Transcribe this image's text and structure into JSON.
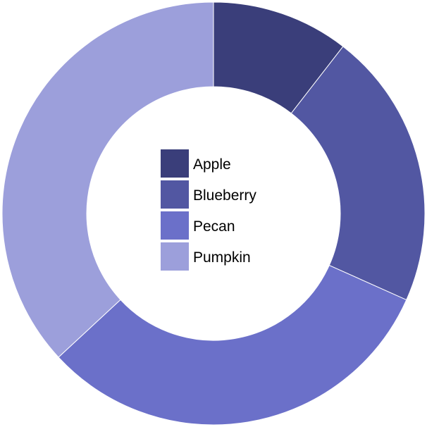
{
  "chart_data": {
    "type": "pie",
    "variant": "donut",
    "title": "",
    "legend_placement": "center",
    "categories": [
      "Apple",
      "Blueberry",
      "Pecan",
      "Pumpkin"
    ],
    "values": [
      10.5,
      21.2,
      31.4,
      36.9
    ],
    "unit": "percent",
    "colors": [
      "#3a3e7a",
      "#5257a2",
      "#6b70c9",
      "#9c9fdb"
    ],
    "start_angle_deg": 0,
    "direction": "clockwise"
  }
}
